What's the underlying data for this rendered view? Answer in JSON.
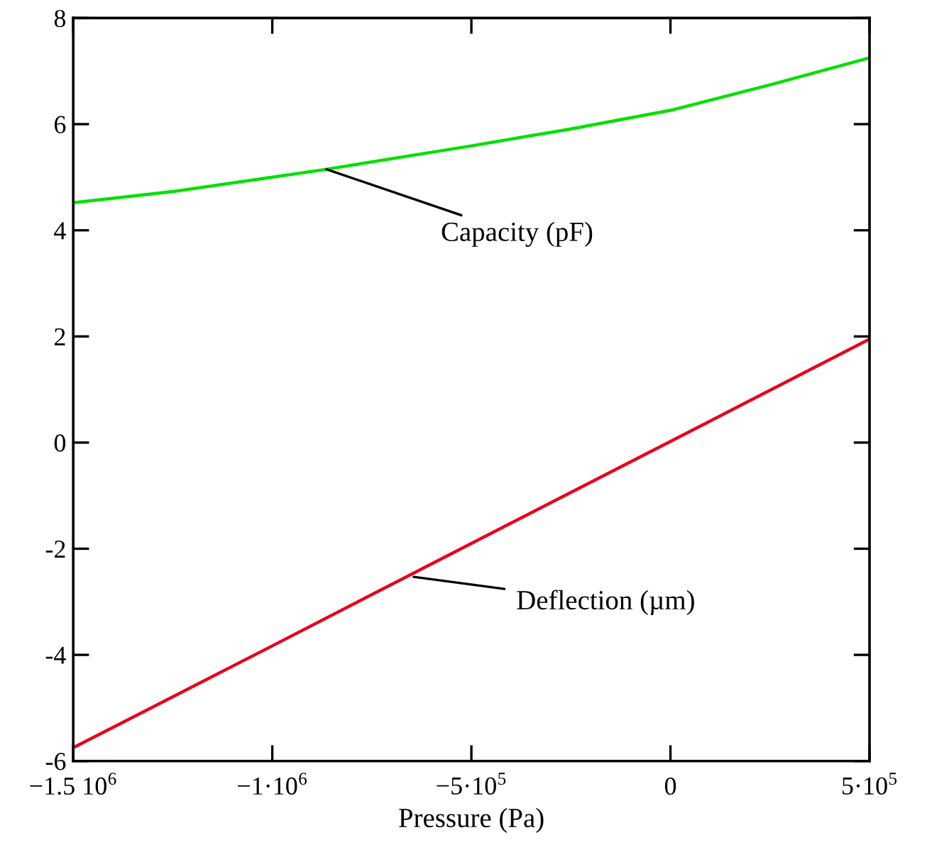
{
  "chart_data": {
    "type": "line",
    "xlabel": "Pressure (Pa)",
    "series": [
      {
        "color": "#00e000",
        "x": [
          -1500000,
          -1250000,
          -1000000,
          -864000,
          -500000,
          -250000,
          0,
          250000,
          500000
        ],
        "values": [
          4.52,
          4.73,
          5.0,
          5.15,
          5.59,
          5.91,
          6.26,
          6.74,
          7.25
        ]
      },
      {
        "color": "#e8001c",
        "x": [
          -1500000,
          -1000000,
          -500000,
          0,
          500000
        ],
        "values": [
          -5.75,
          -3.83,
          -1.9,
          0.02,
          1.95
        ]
      }
    ],
    "annotations": [
      {
        "text": "Capacity (pF)",
        "x": -864000,
        "y": 5.15
      },
      {
        "text": "Deflection (µm)",
        "x": -645000,
        "y": -2.53
      }
    ],
    "xlim": [
      -1500000,
      500000
    ],
    "xticks": [
      {
        "value": -1500000,
        "label": "−1.5 10$^{6}$"
      },
      {
        "value": -1000000,
        "label": "−1·10$^{6}$"
      },
      {
        "value": -500000,
        "label": "−5·10$^{5}$"
      },
      0,
      {
        "value": 500000,
        "label": "5·10$^{5}$"
      }
    ],
    "ylim": [
      -6,
      8
    ],
    "yticks": [
      -6,
      -4,
      -2,
      0,
      2,
      4,
      6,
      8
    ],
    "grid": false,
    "legend": false,
    "marker": "none",
    "line_style": "solid"
  }
}
